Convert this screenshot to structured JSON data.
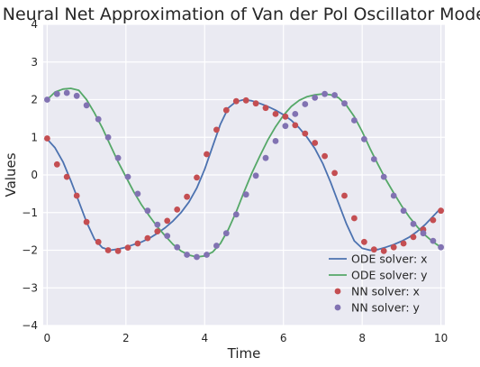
{
  "chart_data": {
    "type": "line",
    "title": "Neural Net Approximation of Van der Pol Oscillator Model",
    "xlabel": "Time",
    "ylabel": "Values",
    "xlim": [
      -0.1,
      10.1
    ],
    "ylim": [
      -4,
      4
    ],
    "xticks": [
      0,
      2,
      4,
      6,
      8,
      10
    ],
    "yticks": [
      -4,
      -3,
      -2,
      -1,
      0,
      1,
      2,
      3,
      4
    ],
    "grid": true,
    "legend_position": "lower-right",
    "series": [
      {
        "name": "ODE solver: x",
        "kind": "line",
        "color": "#4c72b0",
        "x": [
          0,
          0.2,
          0.4,
          0.6,
          0.8,
          1.0,
          1.2,
          1.4,
          1.6,
          1.8,
          2.0,
          2.2,
          2.4,
          2.6,
          2.8,
          3.0,
          3.2,
          3.4,
          3.6,
          3.8,
          4.0,
          4.2,
          4.4,
          4.6,
          4.8,
          5.0,
          5.2,
          5.4,
          5.6,
          5.8,
          6.0,
          6.2,
          6.4,
          6.6,
          6.8,
          7.0,
          7.2,
          7.4,
          7.6,
          7.8,
          8.0,
          8.2,
          8.4,
          8.6,
          8.8,
          9.0,
          9.2,
          9.4,
          9.6,
          9.8,
          10.0
        ],
        "y": [
          0.95,
          0.72,
          0.35,
          -0.15,
          -0.7,
          -1.25,
          -1.7,
          -1.93,
          -2.0,
          -1.97,
          -1.92,
          -1.85,
          -1.78,
          -1.68,
          -1.55,
          -1.4,
          -1.22,
          -1.0,
          -0.72,
          -0.35,
          0.15,
          0.75,
          1.35,
          1.78,
          1.95,
          2.0,
          1.97,
          1.9,
          1.82,
          1.72,
          1.6,
          1.45,
          1.25,
          1.0,
          0.7,
          0.3,
          -0.2,
          -0.75,
          -1.3,
          -1.75,
          -1.95,
          -2.0,
          -1.98,
          -1.92,
          -1.85,
          -1.76,
          -1.65,
          -1.5,
          -1.32,
          -1.1,
          -0.88
        ]
      },
      {
        "name": "ODE solver: y",
        "kind": "line",
        "color": "#55a868",
        "x": [
          0,
          0.2,
          0.4,
          0.6,
          0.8,
          1.0,
          1.2,
          1.4,
          1.6,
          1.8,
          2.0,
          2.2,
          2.4,
          2.6,
          2.8,
          3.0,
          3.2,
          3.4,
          3.6,
          3.8,
          4.0,
          4.2,
          4.4,
          4.6,
          4.8,
          5.0,
          5.2,
          5.4,
          5.6,
          5.8,
          6.0,
          6.2,
          6.4,
          6.6,
          6.8,
          7.0,
          7.2,
          7.4,
          7.6,
          7.8,
          8.0,
          8.2,
          8.4,
          8.6,
          8.8,
          9.0,
          9.2,
          9.4,
          9.6,
          9.8,
          10.0
        ],
        "y": [
          2.0,
          2.2,
          2.28,
          2.3,
          2.25,
          2.0,
          1.65,
          1.25,
          0.8,
          0.35,
          -0.05,
          -0.45,
          -0.8,
          -1.1,
          -1.38,
          -1.62,
          -1.85,
          -2.02,
          -2.13,
          -2.18,
          -2.15,
          -2.05,
          -1.82,
          -1.45,
          -0.98,
          -0.45,
          0.05,
          0.5,
          0.92,
          1.28,
          1.58,
          1.82,
          1.98,
          2.08,
          2.13,
          2.15,
          2.13,
          2.05,
          1.85,
          1.55,
          1.15,
          0.7,
          0.28,
          -0.12,
          -0.48,
          -0.82,
          -1.12,
          -1.38,
          -1.6,
          -1.78,
          -1.92
        ]
      },
      {
        "name": "NN solver: x",
        "kind": "scatter",
        "color": "#c44e52",
        "x": [
          0,
          0.25,
          0.5,
          0.75,
          1.0,
          1.3,
          1.55,
          1.8,
          2.05,
          2.3,
          2.55,
          2.8,
          3.05,
          3.3,
          3.55,
          3.8,
          4.05,
          4.3,
          4.55,
          4.8,
          5.05,
          5.3,
          5.55,
          5.8,
          6.05,
          6.3,
          6.55,
          6.8,
          7.05,
          7.3,
          7.55,
          7.8,
          8.05,
          8.3,
          8.55,
          8.8,
          9.05,
          9.3,
          9.55,
          9.8,
          10.0
        ],
        "y": [
          0.97,
          0.28,
          -0.05,
          -0.55,
          -1.25,
          -1.78,
          -2.0,
          -2.02,
          -1.93,
          -1.82,
          -1.68,
          -1.5,
          -1.22,
          -0.92,
          -0.58,
          -0.07,
          0.55,
          1.2,
          1.72,
          1.96,
          1.98,
          1.9,
          1.78,
          1.62,
          1.55,
          1.32,
          1.1,
          0.85,
          0.5,
          0.05,
          -0.55,
          -1.15,
          -1.78,
          -1.98,
          -2.02,
          -1.92,
          -1.82,
          -1.65,
          -1.45,
          -1.2,
          -0.95
        ]
      },
      {
        "name": "NN solver: y",
        "kind": "scatter",
        "color": "#8172b2",
        "x": [
          0,
          0.25,
          0.5,
          0.75,
          1.0,
          1.3,
          1.55,
          1.8,
          2.05,
          2.3,
          2.55,
          2.8,
          3.05,
          3.3,
          3.55,
          3.8,
          4.05,
          4.3,
          4.55,
          4.8,
          5.05,
          5.3,
          5.55,
          5.8,
          6.05,
          6.3,
          6.55,
          6.8,
          7.05,
          7.3,
          7.55,
          7.8,
          8.05,
          8.3,
          8.55,
          8.8,
          9.05,
          9.3,
          9.55,
          9.8,
          10.0
        ],
        "y": [
          2.0,
          2.15,
          2.18,
          2.1,
          1.85,
          1.48,
          1.0,
          0.45,
          -0.05,
          -0.5,
          -0.95,
          -1.32,
          -1.62,
          -1.92,
          -2.12,
          -2.18,
          -2.12,
          -1.88,
          -1.55,
          -1.05,
          -0.52,
          -0.02,
          0.45,
          0.9,
          1.3,
          1.62,
          1.88,
          2.05,
          2.15,
          2.12,
          1.9,
          1.45,
          0.95,
          0.42,
          -0.05,
          -0.55,
          -0.95,
          -1.3,
          -1.55,
          -1.75,
          -1.92
        ]
      }
    ]
  }
}
